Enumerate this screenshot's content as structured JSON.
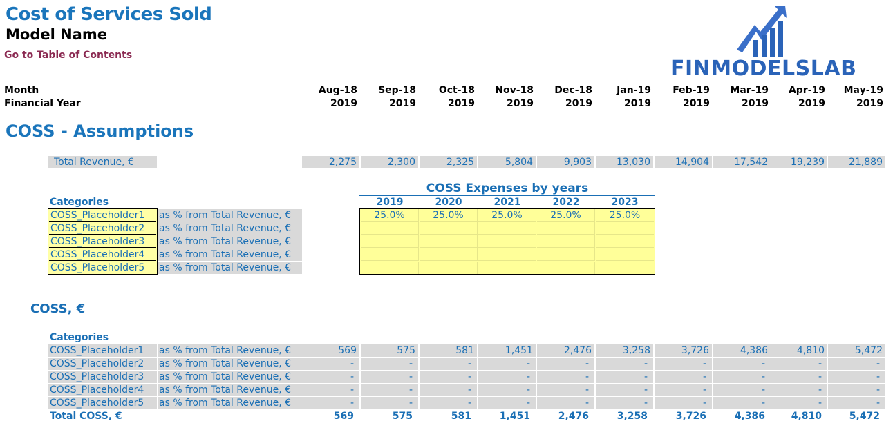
{
  "header": {
    "title": "Cost of Services Sold",
    "model_name": "Model Name",
    "toc_link": "Go to Table of Contents"
  },
  "logo": {
    "text": "FINMODELSLAB",
    "icon": "bar-chart-arrow-icon",
    "color": "#2a63b8"
  },
  "timeline": {
    "month_label": "Month",
    "fy_label": "Financial Year",
    "months": [
      "Aug-18",
      "Sep-18",
      "Oct-18",
      "Nov-18",
      "Dec-18",
      "Jan-19",
      "Feb-19",
      "Mar-19",
      "Apr-19",
      "May-19"
    ],
    "years": [
      "2019",
      "2019",
      "2019",
      "2019",
      "2019",
      "2019",
      "2019",
      "2019",
      "2019",
      "2019"
    ]
  },
  "assumptions": {
    "section_title": "COSS - Assumptions",
    "revenue_label": "Total Revenue, €",
    "revenue_values": [
      "2,275",
      "2,300",
      "2,325",
      "5,804",
      "9,903",
      "13,030",
      "14,904",
      "17,542",
      "19,239",
      "21,889"
    ],
    "expenses_title": "COSS Expenses by years",
    "categories_label": "Categories",
    "years": [
      "2019",
      "2020",
      "2021",
      "2022",
      "2023"
    ],
    "rows": [
      {
        "name": "COSS_Placeholder1",
        "unit": "as % from Total Revenue, €",
        "values": [
          "25.0%",
          "25.0%",
          "25.0%",
          "25.0%",
          "25.0%"
        ]
      },
      {
        "name": "COSS_Placeholder2",
        "unit": "as % from Total Revenue, €",
        "values": [
          "",
          "",
          "",
          "",
          ""
        ]
      },
      {
        "name": "COSS_Placeholder3",
        "unit": "as % from Total Revenue, €",
        "values": [
          "",
          "",
          "",
          "",
          ""
        ]
      },
      {
        "name": "COSS_Placeholder4",
        "unit": "as % from Total Revenue, €",
        "values": [
          "",
          "",
          "",
          "",
          ""
        ]
      },
      {
        "name": "COSS_Placeholder5",
        "unit": "as % from Total Revenue, €",
        "values": [
          "",
          "",
          "",
          "",
          ""
        ]
      }
    ]
  },
  "coss": {
    "section_title": "COSS, €",
    "categories_label": "Categories",
    "rows": [
      {
        "name": "COSS_Placeholder1",
        "unit": "as % from Total Revenue, €",
        "values": [
          "569",
          "575",
          "581",
          "1,451",
          "2,476",
          "3,258",
          "3,726",
          "4,386",
          "4,810",
          "5,472"
        ]
      },
      {
        "name": "COSS_Placeholder2",
        "unit": "as % from Total Revenue, €",
        "values": [
          "-",
          "-",
          "-",
          "-",
          "-",
          "-",
          "-",
          "-",
          "-",
          "-"
        ]
      },
      {
        "name": "COSS_Placeholder3",
        "unit": "as % from Total Revenue, €",
        "values": [
          "-",
          "-",
          "-",
          "-",
          "-",
          "-",
          "-",
          "-",
          "-",
          "-"
        ]
      },
      {
        "name": "COSS_Placeholder4",
        "unit": "as % from Total Revenue, €",
        "values": [
          "-",
          "-",
          "-",
          "-",
          "-",
          "-",
          "-",
          "-",
          "-",
          "-"
        ]
      },
      {
        "name": "COSS_Placeholder5",
        "unit": "as % from Total Revenue, €",
        "values": [
          "-",
          "-",
          "-",
          "-",
          "-",
          "-",
          "-",
          "-",
          "-",
          "-"
        ]
      }
    ],
    "total_label": "Total COSS, €",
    "total_values": [
      "569",
      "575",
      "581",
      "1,451",
      "2,476",
      "3,258",
      "3,726",
      "4,386",
      "4,810",
      "5,472"
    ]
  },
  "colors": {
    "accent": "#1a75bb",
    "input_yellow": "#ffff99",
    "grey_fill": "#d9d9d9",
    "link": "#8b2a52"
  }
}
